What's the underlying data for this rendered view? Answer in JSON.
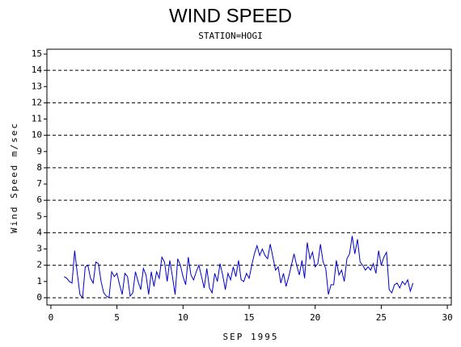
{
  "chart_data": {
    "type": "line",
    "title": "WIND SPEED",
    "subtitle": "STATION=HOGI",
    "x_label": "SEP 1995",
    "y_label": "Wind Speed m/sec",
    "xlim": [
      -0.3,
      30.3
    ],
    "ylim": [
      -0.45,
      15.3
    ],
    "xticks": [
      0,
      5,
      10,
      15,
      20,
      25,
      30
    ],
    "yticks": [
      0,
      1,
      2,
      3,
      4,
      5,
      6,
      7,
      8,
      9,
      10,
      11,
      12,
      13,
      14,
      15
    ],
    "gridlines": [
      0,
      2,
      4,
      6,
      8,
      10,
      12,
      14
    ],
    "x": [
      1.0,
      1.2,
      1.4,
      1.6,
      1.8,
      2.0,
      2.2,
      2.4,
      2.6,
      2.8,
      3.0,
      3.2,
      3.4,
      3.6,
      3.8,
      4.0,
      4.2,
      4.4,
      4.6,
      4.8,
      5.0,
      5.2,
      5.4,
      5.6,
      5.8,
      6.0,
      6.2,
      6.4,
      6.6,
      6.8,
      7.0,
      7.2,
      7.4,
      7.6,
      7.8,
      8.0,
      8.2,
      8.4,
      8.6,
      8.8,
      9.0,
      9.2,
      9.4,
      9.6,
      9.8,
      10.0,
      10.2,
      10.4,
      10.6,
      10.8,
      11.0,
      11.2,
      11.4,
      11.6,
      11.8,
      12.0,
      12.2,
      12.4,
      12.6,
      12.8,
      13.0,
      13.2,
      13.4,
      13.6,
      13.8,
      14.0,
      14.2,
      14.4,
      14.6,
      14.8,
      15.0,
      15.2,
      15.4,
      15.6,
      15.8,
      16.0,
      16.2,
      16.4,
      16.6,
      16.8,
      17.0,
      17.2,
      17.4,
      17.6,
      17.8,
      18.0,
      18.2,
      18.4,
      18.6,
      18.8,
      19.0,
      19.2,
      19.4,
      19.6,
      19.8,
      20.0,
      20.2,
      20.4,
      20.6,
      20.8,
      21.0,
      21.2,
      21.4,
      21.6,
      21.8,
      22.0,
      22.2,
      22.4,
      22.6,
      22.8,
      23.0,
      23.2,
      23.4,
      23.6,
      23.8,
      24.0,
      24.2,
      24.4,
      24.6,
      24.8,
      25.0,
      25.2,
      25.4,
      25.6,
      25.8,
      26.0,
      26.2,
      26.4,
      26.6,
      26.8,
      27.0,
      27.2,
      27.4
    ],
    "series": [
      {
        "color": "#0000cc",
        "values": [
          1.3,
          1.2,
          1.0,
          0.9,
          2.9,
          1.5,
          0.2,
          0.0,
          1.9,
          2.0,
          1.2,
          0.9,
          2.2,
          2.1,
          1.0,
          0.3,
          0.1,
          0.0,
          1.6,
          1.3,
          1.5,
          0.8,
          0.2,
          1.5,
          1.3,
          0.1,
          0.3,
          1.6,
          1.0,
          0.5,
          1.8,
          1.4,
          0.2,
          1.6,
          0.7,
          1.6,
          1.2,
          2.5,
          2.2,
          1.0,
          2.3,
          1.3,
          0.2,
          2.4,
          2.0,
          1.3,
          0.8,
          2.5,
          1.4,
          1.1,
          1.6,
          2.0,
          1.3,
          0.6,
          1.8,
          0.6,
          0.3,
          1.5,
          1.0,
          2.1,
          1.4,
          0.5,
          1.5,
          1.1,
          1.9,
          1.3,
          2.3,
          1.1,
          1.0,
          1.5,
          1.2,
          2.0,
          2.7,
          3.2,
          2.6,
          3.0,
          2.6,
          2.4,
          3.3,
          2.5,
          1.7,
          1.9,
          0.9,
          1.5,
          0.7,
          1.3,
          2.0,
          2.7,
          2.0,
          1.4,
          2.3,
          1.2,
          3.4,
          2.4,
          2.8,
          1.9,
          2.1,
          3.3,
          2.2,
          1.8,
          0.2,
          0.8,
          0.8,
          2.3,
          1.4,
          1.7,
          1.0,
          2.4,
          2.7,
          3.8,
          2.7,
          3.6,
          2.2,
          2.0,
          1.7,
          1.9,
          1.7,
          2.1,
          1.5,
          2.9,
          2.0,
          2.5,
          2.8,
          0.5,
          0.3,
          0.8,
          0.9,
          0.6,
          1.0,
          0.8,
          1.1,
          0.4,
          0.9
        ]
      }
    ]
  }
}
